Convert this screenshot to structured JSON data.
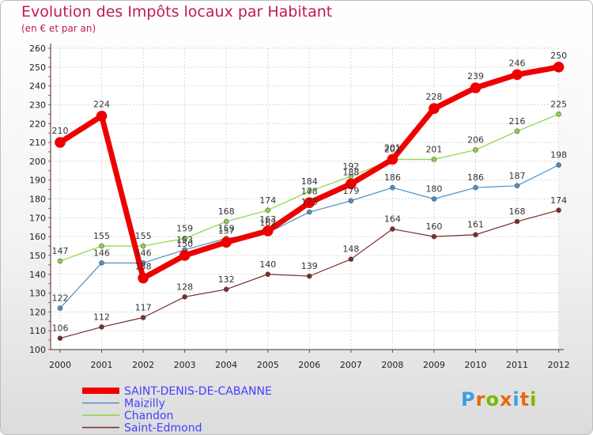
{
  "title": "Evolution des Impôts locaux par Habitant",
  "subtitle": "(en € et par an)",
  "logo": {
    "text": "Proxiti",
    "colors": [
      "#3aa0dc",
      "#e26b10",
      "#7ab800",
      "#e26b10",
      "#3aa0dc",
      "#e26b10",
      "#7ab800"
    ]
  },
  "chart_data": {
    "type": "line",
    "title": "Evolution des Impôts locaux par Habitant",
    "subtitle": "(en € et par an)",
    "xlabel": "",
    "ylabel": "",
    "categories": [
      "2000",
      "2001",
      "2002",
      "2003",
      "2004",
      "2005",
      "2006",
      "2007",
      "2008",
      "2009",
      "2010",
      "2011",
      "2012"
    ],
    "ylim": [
      100,
      260
    ],
    "yticks": [
      100,
      110,
      120,
      130,
      140,
      150,
      160,
      170,
      180,
      190,
      200,
      210,
      220,
      230,
      240,
      250,
      260
    ],
    "grid": true,
    "legend_position": "bottom-left",
    "series": [
      {
        "name": "Saint-Edmond",
        "color": "#7b2b2b",
        "width": 1.2,
        "marker": 3,
        "values": [
          106,
          112,
          117,
          128,
          132,
          140,
          139,
          148,
          164,
          160,
          161,
          168,
          174
        ]
      },
      {
        "name": "Maizilly",
        "color": "#4a90c8",
        "width": 1.2,
        "marker": 3,
        "values": [
          122,
          146,
          146,
          153,
          159,
          162,
          173,
          179,
          186,
          180,
          186,
          187,
          198
        ]
      },
      {
        "name": "Chandon",
        "color": "#8cd44a",
        "width": 1.2,
        "marker": 3,
        "values": [
          147,
          155,
          155,
          159,
          168,
          174,
          184,
          192,
          201,
          201,
          206,
          216,
          225
        ]
      },
      {
        "name": "SAINT-DENIS-DE-CABANNE",
        "color": "#ee0000",
        "width": 7,
        "marker": 6.5,
        "values": [
          210,
          224,
          138,
          150,
          157,
          163,
          178,
          188,
          201,
          228,
          239,
          246,
          250
        ]
      }
    ],
    "legend_order": [
      "SAINT-DENIS-DE-CABANNE",
      "Maizilly",
      "Chandon",
      "Saint-Edmond"
    ]
  }
}
